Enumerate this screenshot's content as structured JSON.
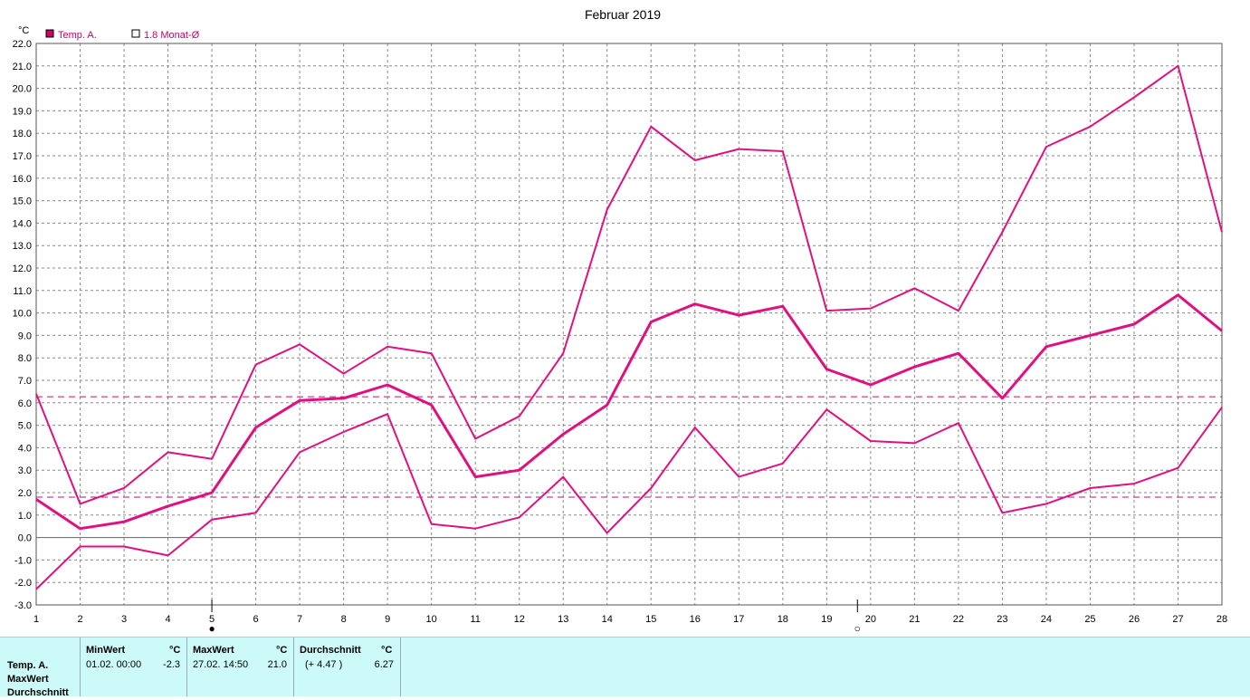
{
  "chart_data": {
    "type": "line",
    "title": "Februar 2019",
    "y_unit": "°C",
    "ylim": [
      -3.0,
      22.0
    ],
    "y_ticks": [
      "22.0",
      "21.0",
      "20.0",
      "19.0",
      "18.0",
      "17.0",
      "16.0",
      "15.0",
      "14.0",
      "13.0",
      "12.0",
      "11.0",
      "10.0",
      "9.0",
      "8.0",
      "7.0",
      "6.0",
      "5.0",
      "4.0",
      "3.0",
      "2.0",
      "1.0",
      "0.0",
      "-1.0",
      "-2.0",
      "-3.0"
    ],
    "x": [
      1,
      2,
      3,
      4,
      5,
      6,
      7,
      8,
      9,
      10,
      11,
      12,
      13,
      14,
      15,
      16,
      17,
      18,
      19,
      20,
      21,
      22,
      23,
      24,
      25,
      26,
      27,
      28
    ],
    "x_ticks": [
      "1",
      "2",
      "3",
      "4",
      "5",
      "6",
      "7",
      "8",
      "9",
      "10",
      "11",
      "12",
      "13",
      "14",
      "15",
      "16",
      "17",
      "18",
      "19",
      "20",
      "21",
      "22",
      "23",
      "24",
      "25",
      "26",
      "27",
      "28"
    ],
    "grid": true,
    "legend": [
      {
        "label": "Temp. A.",
        "style": "filled",
        "color": "#cc0066"
      },
      {
        "label": "1.8 Monat-Ø",
        "style": "outline",
        "color": "#cc0066"
      }
    ],
    "series": [
      {
        "role": "max",
        "color": "#e0117f",
        "values": [
          6.4,
          1.5,
          2.2,
          3.8,
          3.5,
          7.7,
          8.6,
          7.3,
          8.5,
          8.2,
          4.4,
          5.4,
          8.2,
          14.6,
          18.3,
          16.8,
          17.3,
          17.2,
          10.1,
          10.2,
          11.1,
          10.1,
          13.6,
          17.4,
          18.3,
          19.6,
          21.0,
          13.6
        ]
      },
      {
        "role": "avg",
        "color": "#e0117f",
        "values": [
          1.7,
          0.4,
          0.7,
          1.4,
          2.0,
          4.9,
          6.1,
          6.2,
          6.8,
          5.9,
          2.7,
          3.0,
          4.6,
          5.9,
          9.6,
          10.4,
          9.9,
          10.3,
          7.5,
          6.8,
          7.6,
          8.2,
          6.2,
          8.5,
          9.0,
          9.5,
          10.8,
          9.2
        ]
      },
      {
        "role": "min",
        "color": "#e0117f",
        "values": [
          -2.3,
          -0.4,
          -0.4,
          -0.8,
          0.8,
          1.1,
          3.8,
          4.7,
          5.5,
          0.6,
          0.4,
          0.9,
          2.7,
          0.2,
          2.2,
          4.9,
          2.7,
          3.3,
          5.7,
          4.3,
          4.2,
          5.1,
          1.1,
          1.5,
          2.2,
          2.4,
          3.1,
          5.8
        ]
      }
    ],
    "reference_lines": [
      {
        "value": 6.27,
        "color": "#cc1466"
      },
      {
        "value": 1.8,
        "color": "#aa1488"
      }
    ],
    "moon_phases": [
      {
        "day": 5,
        "symbol": "●"
      },
      {
        "day": 19.7,
        "symbol": "○"
      }
    ]
  },
  "stats": {
    "row_labels": [
      "Temp. A.",
      "MaxWert",
      "Durchschnitt"
    ],
    "min": {
      "header": "MinWert",
      "unit": "°C",
      "datetime": "01.02.  00:00",
      "value": "-2.3"
    },
    "max": {
      "header": "MaxWert",
      "unit": "°C",
      "datetime": "27.02.  14:50",
      "value": "21.0"
    },
    "avg": {
      "header": "Durchschnitt",
      "unit": "°C",
      "delta": "(+ 4.47 )",
      "value": "6.27"
    }
  }
}
